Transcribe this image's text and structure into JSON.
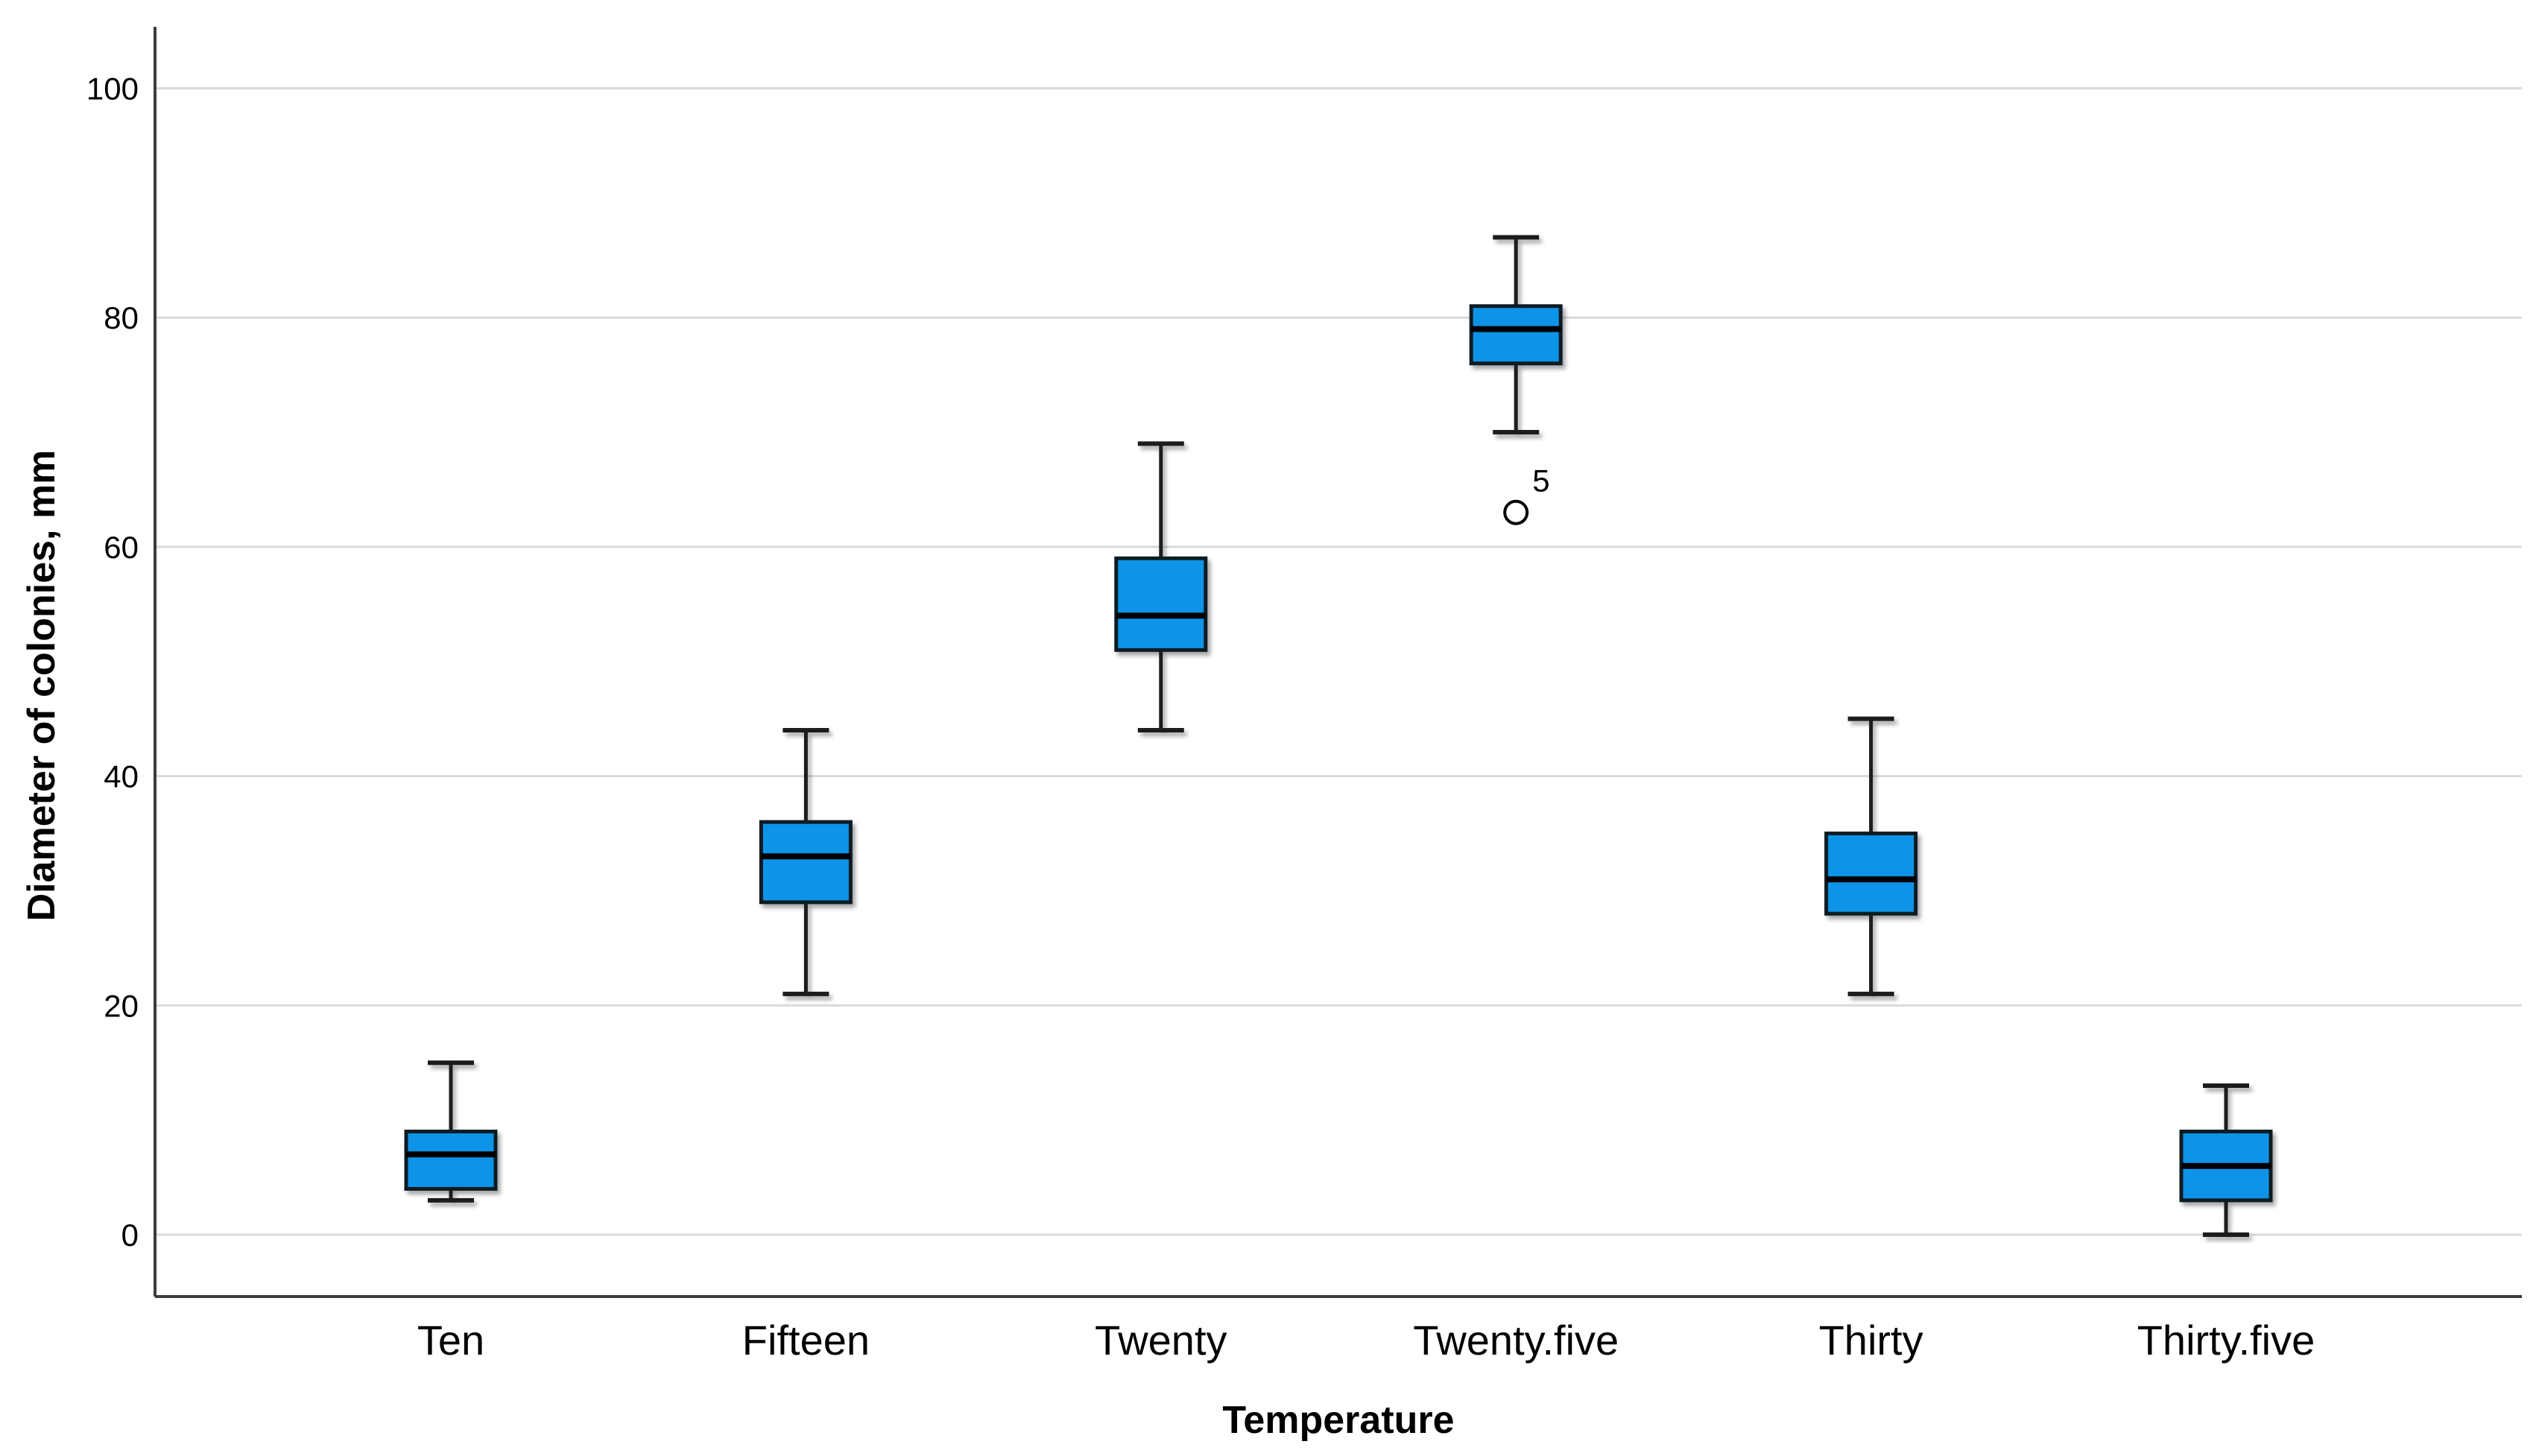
{
  "figure": {
    "background": "#ffffff"
  },
  "chart_data": {
    "type": "box",
    "title": "",
    "xlabel": "Temperature",
    "ylabel": "Diameter of colonies, mm",
    "categories": [
      "Ten",
      "Fifteen",
      "Twenty",
      "Twenty.five",
      "Thirty",
      "Thirty.five"
    ],
    "y_axis": {
      "ticks": [
        0,
        20,
        40,
        60,
        80,
        100
      ],
      "range": [
        -5,
        105
      ],
      "gridlines": "horizontal"
    },
    "legend": null,
    "boxes": [
      {
        "category": "Ten",
        "whisker_low": 3,
        "q1": 4,
        "median": 7,
        "q3": 9,
        "whisker_high": 15,
        "outliers": []
      },
      {
        "category": "Fifteen",
        "whisker_low": 21,
        "q1": 29,
        "median": 33,
        "q3": 36,
        "whisker_high": 44,
        "outliers": []
      },
      {
        "category": "Twenty",
        "whisker_low": 44,
        "q1": 51,
        "median": 54,
        "q3": 59,
        "whisker_high": 69,
        "outliers": []
      },
      {
        "category": "Twenty.five",
        "whisker_low": 70,
        "q1": 76,
        "median": 79,
        "q3": 81,
        "whisker_high": 87,
        "outliers": [
          {
            "value": 63,
            "label": "5"
          }
        ]
      },
      {
        "category": "Thirty",
        "whisker_low": 21,
        "q1": 28,
        "median": 31,
        "q3": 35,
        "whisker_high": 45,
        "outliers": []
      },
      {
        "category": "Thirty.five",
        "whisker_low": 0,
        "q1": 3,
        "median": 6,
        "q3": 9,
        "whisker_high": 13,
        "outliers": []
      }
    ],
    "colors": {
      "box_fill": "#0d94e8",
      "box_border": "#0e1b24",
      "median": "#000000",
      "whisker": "#1b1b1b",
      "outlier": "#000000",
      "gridline": "#d9d9d9",
      "axis": "#3c3c3c",
      "text": "#000000"
    }
  }
}
